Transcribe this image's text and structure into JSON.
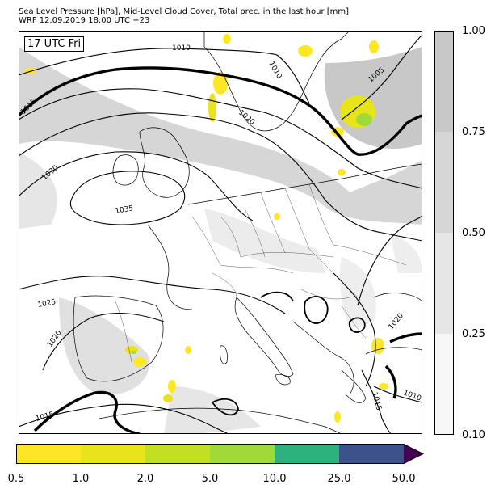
{
  "title_line1": "Sea Level Pressure [hPa], Mid-Level Cloud Cover, Total prec. in the last hour [mm]",
  "title_line2": "WRF 12.09.2019 18:00 UTC +23",
  "time_label": "17 UTC Fri",
  "isobars": {
    "i1010a": "1010",
    "i1010b": "1010",
    "i1005": "1005",
    "i1015a": "1015",
    "i1020a": "1020",
    "i1030": "1030",
    "i1035": "1035",
    "i1025": "1025",
    "i1020b": "1020",
    "i1015b": "1015",
    "i1020c": "1020",
    "i1010c": "1010",
    "i1015c": "1015"
  },
  "cloud_colorbar": {
    "colors": [
      "#f7f7f7",
      "#e6e6e6",
      "#d6d6d6",
      "#c8c8c8"
    ],
    "ticks": [
      "0.10",
      "0.25",
      "0.50",
      "0.75",
      "1.00"
    ]
  },
  "precip_colorbar": {
    "colors": [
      "#fde725",
      "#e8e419",
      "#c2df23",
      "#a0da39",
      "#2db27d",
      "#3b528b",
      "#440154"
    ],
    "ticks": [
      "0.5",
      "1.0",
      "2.0",
      "5.0",
      "10.0",
      "25.0",
      "50.0"
    ]
  }
}
